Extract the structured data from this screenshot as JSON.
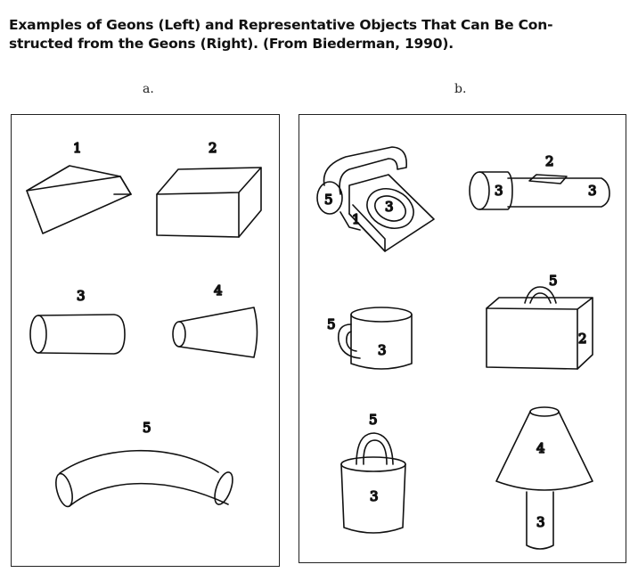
{
  "caption": {
    "line1": "Examples of Geons (Left) and Representative Objects That Can Be Con-",
    "line2": "structed from the Geons (Right). (From Biederman, 1990)."
  },
  "panels": {
    "a_label": "a.",
    "b_label": "b."
  },
  "geons": [
    {
      "number": "1",
      "shape": "wedge"
    },
    {
      "number": "2",
      "shape": "brick"
    },
    {
      "number": "3",
      "shape": "cylinder"
    },
    {
      "number": "4",
      "shape": "cone"
    },
    {
      "number": "5",
      "shape": "curved-tube"
    }
  ],
  "objects": [
    {
      "name": "telephone",
      "labels": [
        "5",
        "3",
        "1"
      ]
    },
    {
      "name": "flashlight",
      "labels": [
        "3",
        "2",
        "3"
      ]
    },
    {
      "name": "mug",
      "labels": [
        "5",
        "3"
      ]
    },
    {
      "name": "briefcase",
      "labels": [
        "5",
        "2"
      ]
    },
    {
      "name": "bucket",
      "labels": [
        "5",
        "3"
      ]
    },
    {
      "name": "lamp",
      "labels": [
        "4",
        "3"
      ]
    }
  ]
}
